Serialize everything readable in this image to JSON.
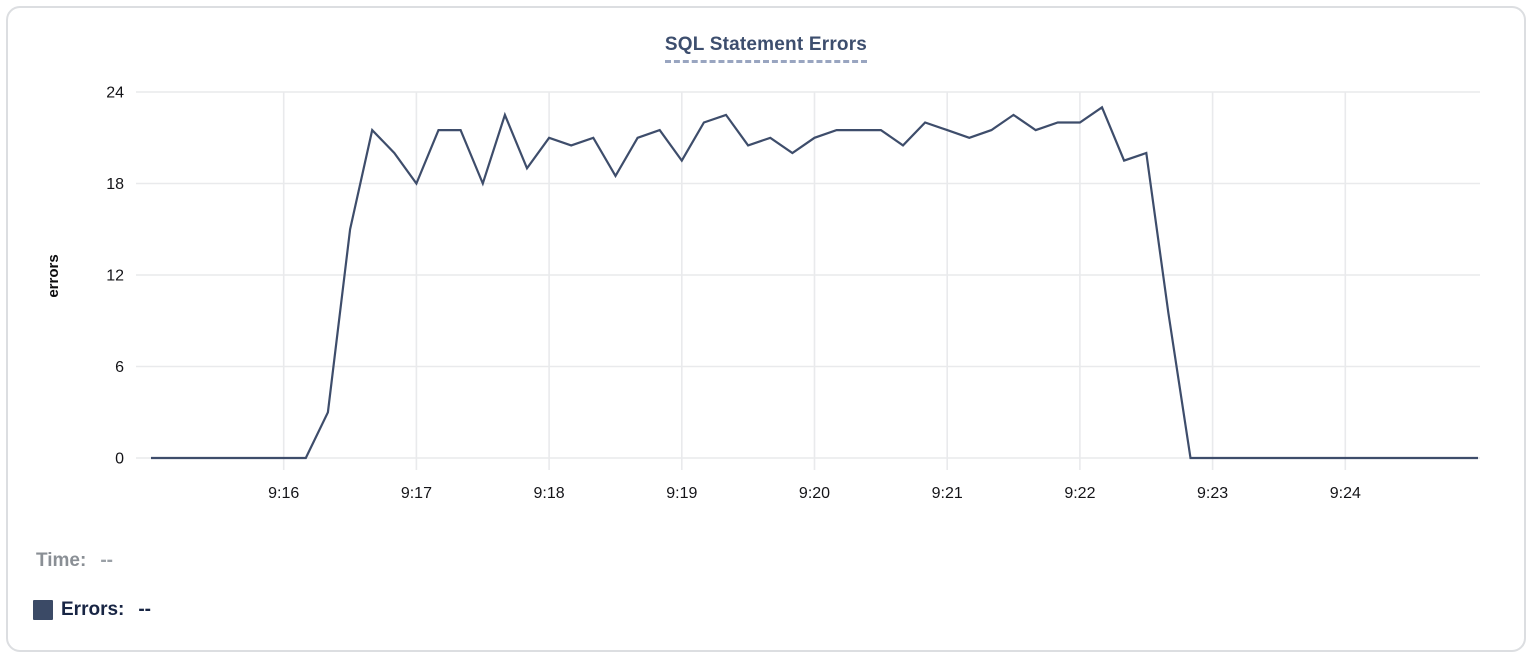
{
  "chart": {
    "title": "SQL Statement Errors",
    "y_axis_label": "errors"
  },
  "legend": {
    "time_label": "Time:",
    "time_value": "--",
    "errors_label": "Errors:",
    "errors_value": "--"
  },
  "colors": {
    "line": "#3e4d6b",
    "legend_swatch": "#3b4a66",
    "title": "#3d4e6e",
    "title_underline": "#99a5c0",
    "grid": "#e9eaec",
    "tick_text": "#141418",
    "time_legend_text": "#8a8f95",
    "errors_legend_text": "#182544"
  },
  "chart_data": {
    "type": "line",
    "title": "SQL Statement Errors",
    "xlabel": "",
    "ylabel": "errors",
    "ylim": [
      0,
      24
    ],
    "y_ticks": [
      24,
      18,
      12,
      6,
      0
    ],
    "x_ticks": [
      "9:16",
      "9:17",
      "9:18",
      "9:19",
      "9:20",
      "9:21",
      "9:22",
      "9:23",
      "9:24"
    ],
    "x_range": [
      "9:15:00",
      "9:25:00"
    ],
    "grid": true,
    "legend_position": "bottom-left",
    "series": [
      {
        "name": "Errors",
        "times": [
          "9:15:00",
          "9:15:10",
          "9:15:20",
          "9:15:30",
          "9:15:40",
          "9:15:50",
          "9:16:00",
          "9:16:10",
          "9:16:20",
          "9:16:30",
          "9:16:40",
          "9:16:50",
          "9:17:00",
          "9:17:10",
          "9:17:20",
          "9:17:30",
          "9:17:40",
          "9:17:50",
          "9:18:00",
          "9:18:10",
          "9:18:20",
          "9:18:30",
          "9:18:40",
          "9:18:50",
          "9:19:00",
          "9:19:10",
          "9:19:20",
          "9:19:30",
          "9:19:40",
          "9:19:50",
          "9:20:00",
          "9:20:10",
          "9:20:20",
          "9:20:30",
          "9:20:40",
          "9:20:50",
          "9:21:00",
          "9:21:10",
          "9:21:20",
          "9:21:30",
          "9:21:40",
          "9:21:50",
          "9:22:00",
          "9:22:10",
          "9:22:20",
          "9:22:30",
          "9:22:40",
          "9:22:50",
          "9:23:00",
          "9:23:10",
          "9:23:20",
          "9:23:30",
          "9:23:40",
          "9:23:50",
          "9:24:00",
          "9:24:10",
          "9:24:20",
          "9:24:30",
          "9:24:40",
          "9:24:50",
          "9:25:00"
        ],
        "values": [
          0,
          0,
          0,
          0,
          0,
          0,
          0,
          0,
          3,
          15,
          21.5,
          20,
          18,
          21.5,
          21.5,
          18,
          22.5,
          19,
          21,
          20.5,
          21,
          18.5,
          21,
          21.5,
          19.5,
          22,
          22.5,
          20.5,
          21,
          20,
          21,
          21.5,
          21.5,
          21.5,
          20.5,
          22,
          21.5,
          21,
          21.5,
          22.5,
          21.5,
          22,
          22,
          23,
          19.5,
          20,
          9.5,
          0,
          0,
          0,
          0,
          0,
          0,
          0,
          0,
          0,
          0,
          0,
          0,
          0,
          0
        ]
      }
    ]
  }
}
